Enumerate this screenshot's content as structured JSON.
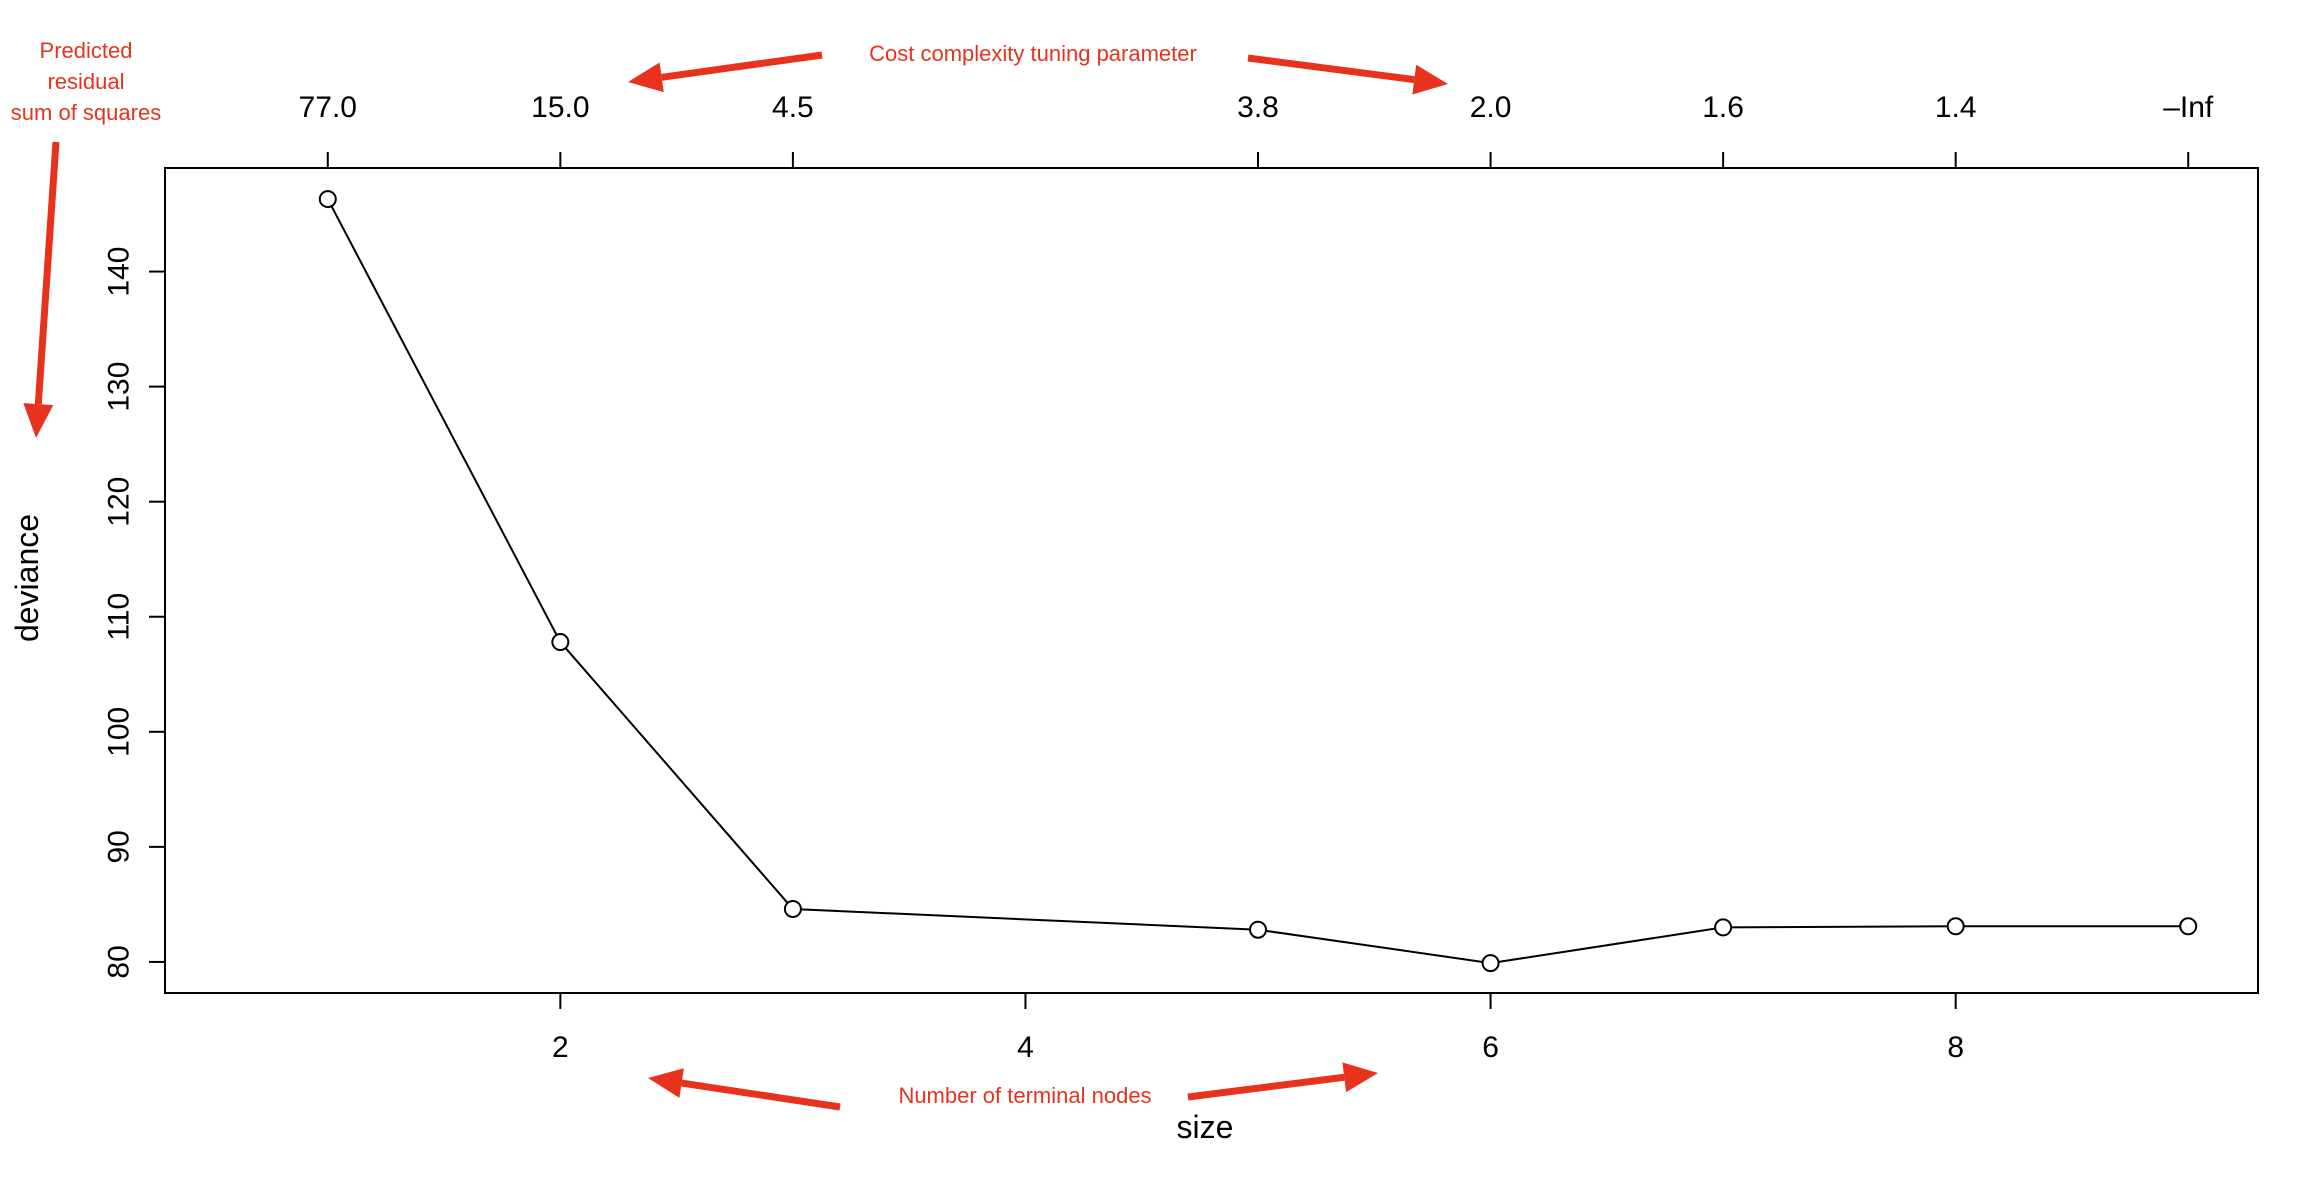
{
  "chart_data": {
    "type": "line",
    "x": [
      1,
      2,
      3,
      5,
      6,
      7,
      8,
      9
    ],
    "y": [
      146.3,
      107.8,
      84.6,
      82.8,
      79.9,
      83.0,
      83.1,
      83.1
    ],
    "xlabel": "size",
    "ylabel": "deviance",
    "xlim": [
      0.3,
      9.3
    ],
    "ylim": [
      77.3,
      149.0
    ],
    "x_ticks": [
      2,
      4,
      6,
      8
    ],
    "y_ticks": [
      80,
      90,
      100,
      110,
      120,
      130,
      140
    ],
    "top_axis": {
      "positions": [
        1,
        2,
        3,
        5,
        6,
        7,
        8,
        9
      ],
      "labels": [
        "77.0",
        "15.0",
        "4.5",
        "3.8",
        "2.0",
        "1.6",
        "1.4",
        "–Inf"
      ]
    },
    "marker": "open-circle",
    "grid": false,
    "annotations": {
      "top": "Cost complexity tuning parameter",
      "bottom": "Number of terminal nodes",
      "left_lines": [
        "Predicted",
        "residual",
        "sum of squares"
      ]
    },
    "annotation_color": "#e8321e",
    "line_color": "#000000"
  }
}
